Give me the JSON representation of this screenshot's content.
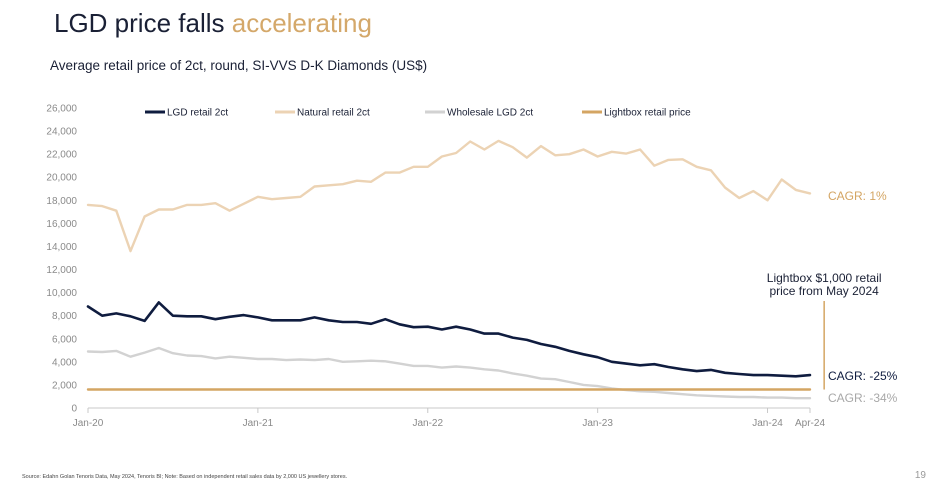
{
  "header": {
    "title_main": "LGD price falls",
    "title_accent": "accelerating",
    "subtitle": "Average retail price of 2ct, round, SI-VVS D-K Diamonds (US$)"
  },
  "footer": {
    "source": "Source: Edahn Golan Tenoris Data, May 2024, Tenoris BI; Note: Based on independent retail sales data by 2,000 US jewellery stores.",
    "page": "19"
  },
  "chart_data": {
    "type": "line",
    "ylim": [
      0,
      26000
    ],
    "yticks": [
      0,
      2000,
      4000,
      6000,
      8000,
      10000,
      12000,
      14000,
      16000,
      18000,
      20000,
      22000,
      24000,
      26000
    ],
    "ytick_labels": [
      "0",
      "2,000",
      "4,000",
      "6,000",
      "8,000",
      "10,000",
      "12,000",
      "14,000",
      "16,000",
      "18,000",
      "20,000",
      "22,000",
      "24,000",
      "26,000"
    ],
    "xlim": [
      "2020-01",
      "2024-04"
    ],
    "xticks": [
      {
        "date": "2020-01",
        "label": "Jan-20"
      },
      {
        "date": "2021-01",
        "label": "Jan-21"
      },
      {
        "date": "2022-01",
        "label": "Jan-22"
      },
      {
        "date": "2023-01",
        "label": "Jan-23"
      },
      {
        "date": "2024-01",
        "label": "Jan-24"
      },
      {
        "date": "2024-04",
        "label": "Apr-24"
      }
    ],
    "x": [
      "2020-01",
      "2020-02",
      "2020-03",
      "2020-04",
      "2020-05",
      "2020-06",
      "2020-07",
      "2020-08",
      "2020-09",
      "2020-10",
      "2020-11",
      "2020-12",
      "2021-01",
      "2021-02",
      "2021-03",
      "2021-04",
      "2021-05",
      "2021-06",
      "2021-07",
      "2021-08",
      "2021-09",
      "2021-10",
      "2021-11",
      "2021-12",
      "2022-01",
      "2022-02",
      "2022-03",
      "2022-04",
      "2022-05",
      "2022-06",
      "2022-07",
      "2022-08",
      "2022-09",
      "2022-10",
      "2022-11",
      "2022-12",
      "2023-01",
      "2023-02",
      "2023-03",
      "2023-04",
      "2023-05",
      "2023-06",
      "2023-07",
      "2023-08",
      "2023-09",
      "2023-10",
      "2023-11",
      "2023-12",
      "2024-01",
      "2024-02",
      "2024-03",
      "2024-04"
    ],
    "series": [
      {
        "name": "LGD retail 2ct",
        "color": "#0f1c3f",
        "width": 2.6,
        "values": [
          8800,
          8000,
          8200,
          7950,
          7550,
          9150,
          8000,
          7950,
          7950,
          7700,
          7900,
          8050,
          7850,
          7600,
          7600,
          7600,
          7850,
          7600,
          7450,
          7450,
          7300,
          7700,
          7250,
          7000,
          7050,
          6800,
          7050,
          6800,
          6450,
          6450,
          6100,
          5900,
          5550,
          5300,
          4950,
          4650,
          4400,
          4000,
          3850,
          3700,
          3800,
          3550,
          3350,
          3200,
          3300,
          3050,
          2950,
          2850,
          2850,
          2800,
          2750,
          2850
        ]
      },
      {
        "name": "Natural retail 2ct",
        "color": "#ecd3b4",
        "width": 2.4,
        "values": [
          17600,
          17500,
          17100,
          13600,
          16600,
          17200,
          17200,
          17600,
          17600,
          17750,
          17100,
          17700,
          18300,
          18100,
          18200,
          18300,
          19200,
          19300,
          19400,
          19700,
          19600,
          20400,
          20400,
          20900,
          20900,
          21800,
          22100,
          23100,
          22400,
          23150,
          22600,
          21700,
          22700,
          21900,
          22000,
          22400,
          21800,
          22200,
          22050,
          22400,
          21000,
          21500,
          21550,
          20900,
          20600,
          19100,
          18200,
          18800,
          18000,
          19800,
          18900,
          18600
        ]
      },
      {
        "name": "Wholesale LGD 2ct",
        "color": "#d2d2d2",
        "width": 2.4,
        "values": [
          4900,
          4850,
          4950,
          4450,
          4800,
          5200,
          4750,
          4550,
          4500,
          4300,
          4450,
          4350,
          4250,
          4250,
          4150,
          4200,
          4150,
          4250,
          4000,
          4050,
          4100,
          4050,
          3850,
          3650,
          3650,
          3500,
          3600,
          3500,
          3350,
          3250,
          3000,
          2800,
          2550,
          2500,
          2250,
          2000,
          1900,
          1700,
          1550,
          1450,
          1400,
          1300,
          1200,
          1100,
          1050,
          1000,
          950,
          950,
          900,
          900,
          850,
          850
        ]
      },
      {
        "name": "Lightbox retail price",
        "color": "#d4a563",
        "width": 2.4,
        "values": [
          1600,
          1600,
          1600,
          1600,
          1600,
          1600,
          1600,
          1600,
          1600,
          1600,
          1600,
          1600,
          1600,
          1600,
          1600,
          1600,
          1600,
          1600,
          1600,
          1600,
          1600,
          1600,
          1600,
          1600,
          1600,
          1600,
          1600,
          1600,
          1600,
          1600,
          1600,
          1600,
          1600,
          1600,
          1600,
          1600,
          1600,
          1600,
          1600,
          1600,
          1600,
          1600,
          1600,
          1600,
          1600,
          1600,
          1600,
          1600,
          1600,
          1600,
          1600,
          1600
        ]
      }
    ],
    "annotations": {
      "cagr_natural": {
        "text": "CAGR: 1%",
        "color": "#d4a563"
      },
      "cagr_lgd": {
        "text": "CAGR: -25%",
        "color": "#0f1c3f"
      },
      "cagr_wholesale": {
        "text": "CAGR: -34%",
        "color": "#a8a8a8"
      },
      "lightbox_note": {
        "lines": [
          "Lightbox $1,000 retail",
          "price from May 2024"
        ],
        "date": "2024-05"
      }
    },
    "legend": {
      "placement": "top"
    }
  }
}
